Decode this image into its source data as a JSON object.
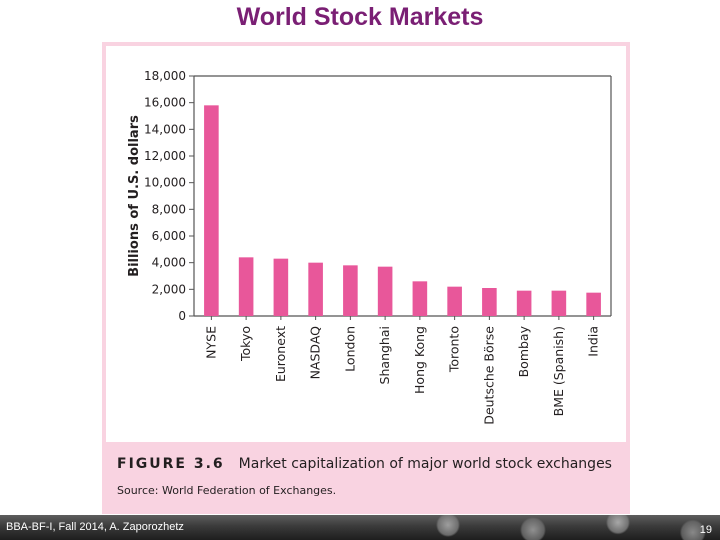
{
  "slide": {
    "title": "World Stock Markets",
    "footer_text": "BBA-BF-I, Fall 2014, A. Zaporozhetz",
    "page_number": "19"
  },
  "figure": {
    "number": "FIGURE 3.6",
    "caption": "Market capitalization of major world stock exchanges",
    "source": "Source: World Federation of Exchanges."
  },
  "colors": {
    "bar": "#e8579a",
    "title": "#7a1f74",
    "frame": "#f9d3e1"
  },
  "chart_data": {
    "type": "bar",
    "title": "",
    "xlabel": "",
    "ylabel": "Billions of U.S. dollars",
    "categories": [
      "NYSE",
      "Tokyo",
      "Euronext",
      "NASDAQ",
      "London",
      "Shanghai",
      "Hong Kong",
      "Toronto",
      "Deutsche Börse",
      "Bombay",
      "BME (Spanish)",
      "India"
    ],
    "values": [
      15800,
      4400,
      4300,
      4000,
      3800,
      3700,
      2600,
      2200,
      2100,
      1900,
      1900,
      1750
    ],
    "ylim": [
      0,
      18000
    ],
    "yticks": [
      0,
      2000,
      4000,
      6000,
      8000,
      10000,
      12000,
      14000,
      16000,
      18000
    ],
    "ytick_labels": [
      "0",
      "2,000",
      "4,000",
      "6,000",
      "8,000",
      "10,000",
      "12,000",
      "14,000",
      "16,000",
      "18,000"
    ],
    "grid": false,
    "legend": "none"
  }
}
